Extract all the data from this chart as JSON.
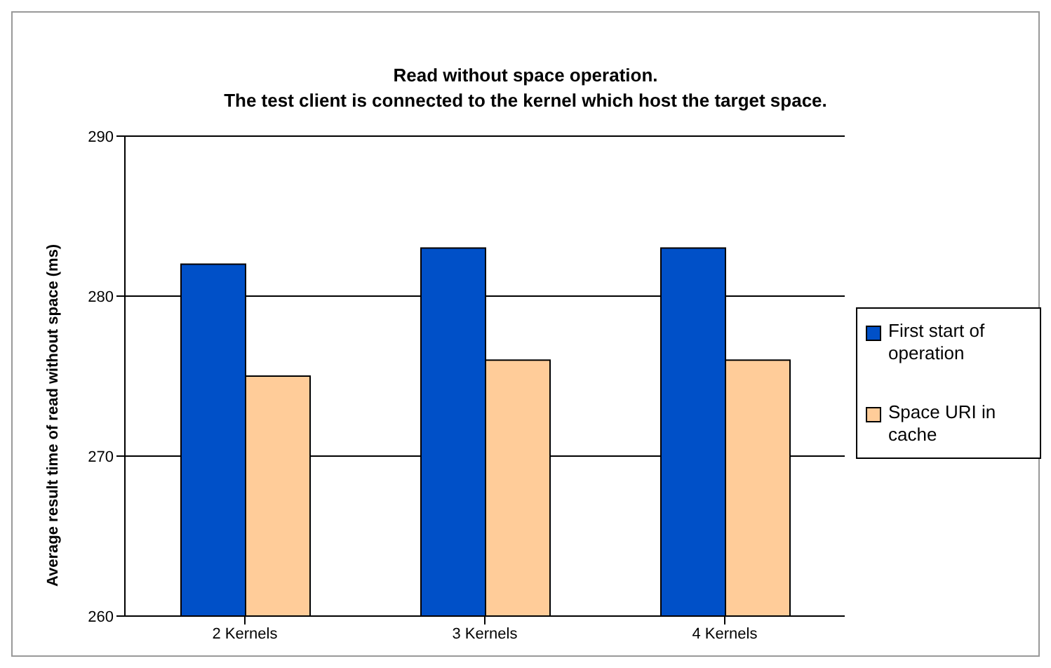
{
  "chart_data": {
    "type": "bar",
    "title": "Read without space operation.",
    "subtitle": "The test client is connected to the kernel which host the target space.",
    "ylabel": "Average result time of read without space (ms)",
    "categories": [
      "2 Kernels",
      "3 Kernels",
      "4 Kernels"
    ],
    "series": [
      {
        "name": "First start of operation",
        "color": "#0050c8",
        "values": [
          282,
          283,
          283
        ]
      },
      {
        "name": "Space URI in cache",
        "color": "#ffcc99",
        "values": [
          275,
          276,
          276
        ]
      }
    ],
    "ylim": [
      260,
      290
    ],
    "yticks": [
      260,
      270,
      280,
      290
    ],
    "grid": "y",
    "legend": "right"
  }
}
